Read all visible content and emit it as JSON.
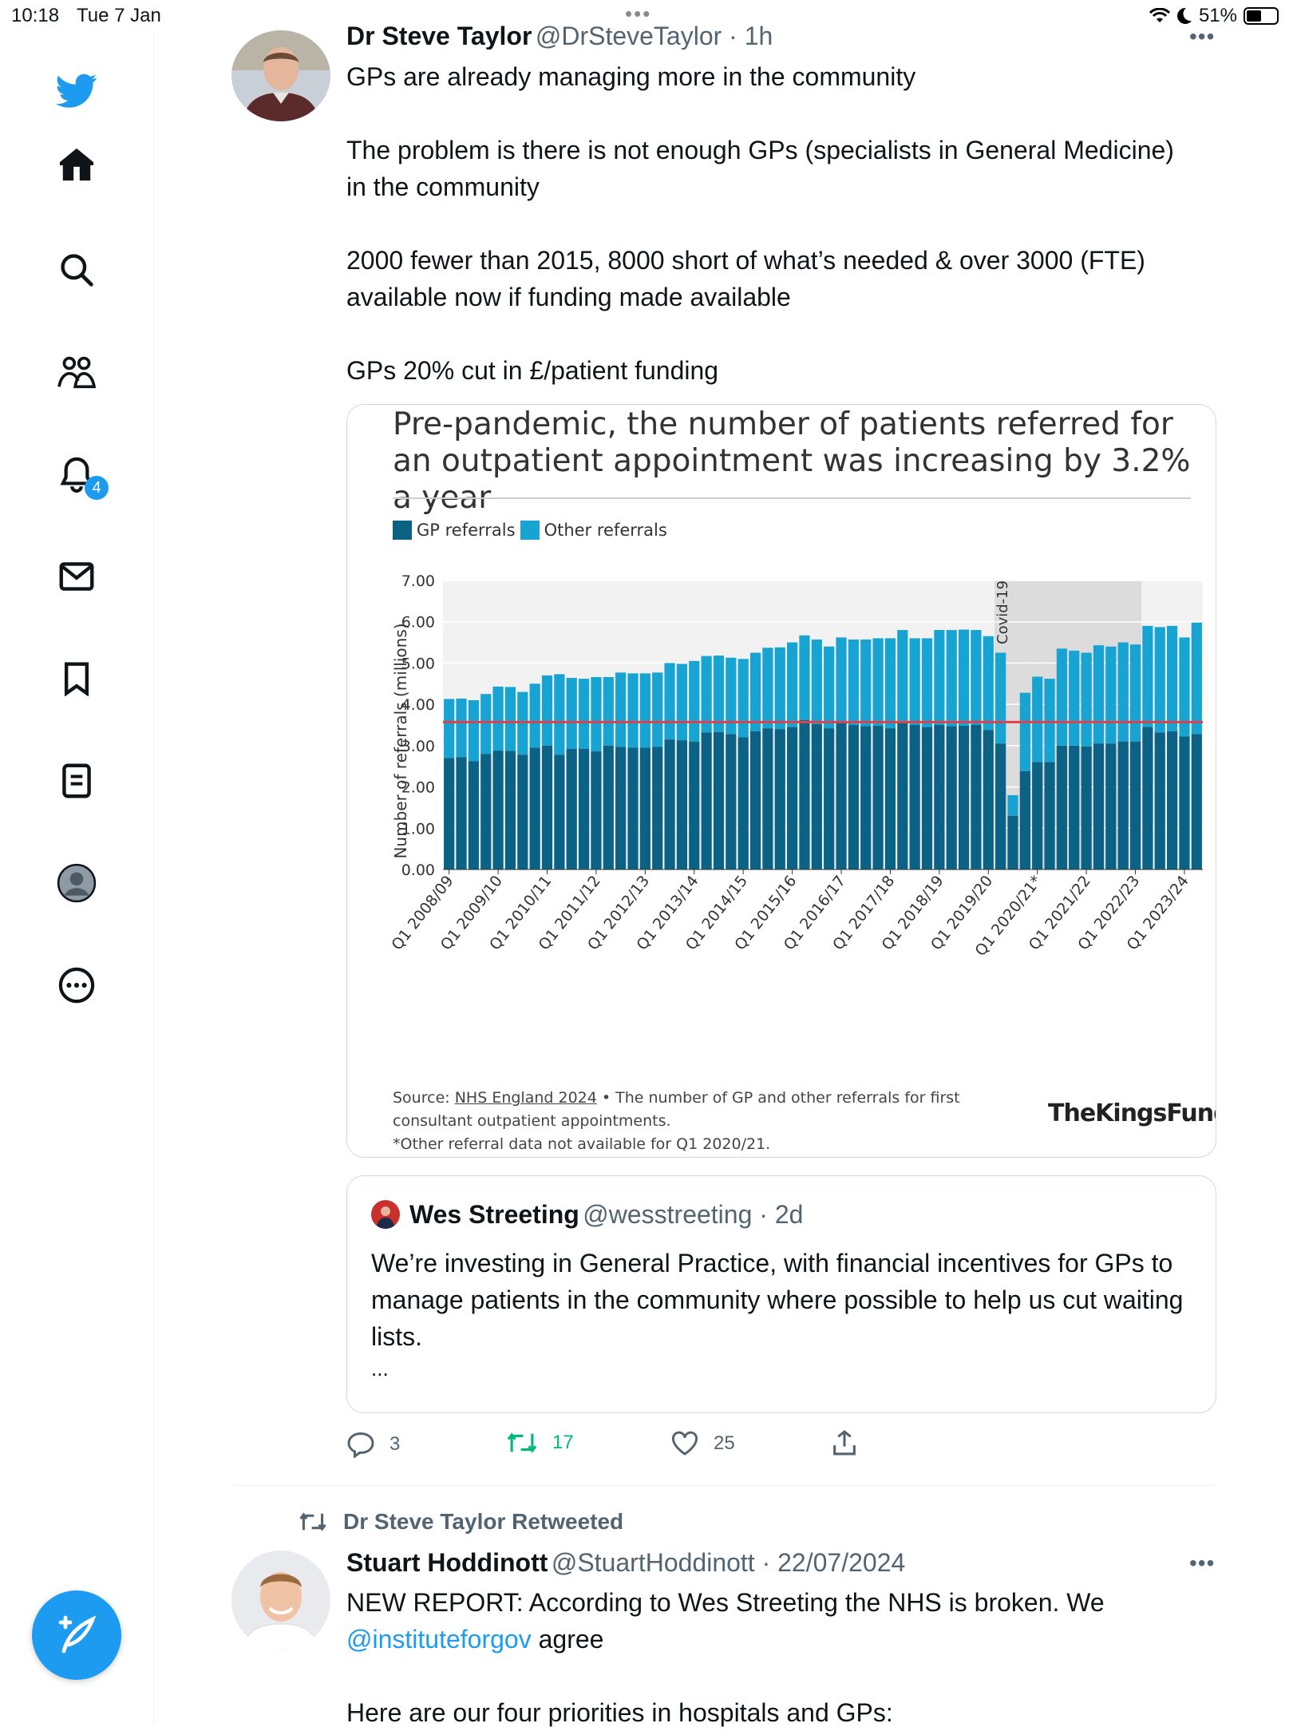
{
  "status_bar": {
    "time": "10:18",
    "date": "Tue 7 Jan",
    "battery": "51%",
    "battery_level": 0.51
  },
  "sidebar": {
    "items": [
      {
        "icon": "twitter-logo-icon"
      },
      {
        "icon": "home-icon"
      },
      {
        "icon": "search-icon"
      },
      {
        "icon": "communities-icon"
      },
      {
        "icon": "notifications-bell-icon",
        "badge": "4"
      },
      {
        "icon": "messages-icon"
      },
      {
        "icon": "bookmarks-icon"
      },
      {
        "icon": "lists-icon"
      },
      {
        "icon": "profile-icon"
      },
      {
        "icon": "more-icon"
      }
    ],
    "accent_color": "#1d9bf0"
  },
  "tweet1": {
    "name": "Dr Steve Taylor",
    "handle_time": "@DrSteveTaylor · 1h",
    "paragraphs": [
      "GPs are already managing more in the community",
      "The problem is there is not enough GPs (specialists in General Medicine) in the community",
      "2000 fewer than 2015, 8000 short of what’s needed & over 3000 (FTE) available now if funding made available",
      "GPs 20% cut in £/patient funding"
    ],
    "replies": "3",
    "retweets": "17",
    "likes": "25"
  },
  "chart_card": {
    "source_prefix": "Source:",
    "source_link": "NHS England 2024",
    "source_rest": " • The number of GP and other referrals for first consultant outpatient appointments.",
    "footnote": "*Other referral data not available for Q1 2020/21.",
    "logo": "TheKingsFund>"
  },
  "chart_data": {
    "type": "bar",
    "stacked": true,
    "title": "Pre-pandemic, the number of patients referred for an outpatient appointment was increasing by 3.2% a year",
    "ylabel": "Number of referrals (millions)",
    "ylim": [
      0,
      7
    ],
    "yticks": [
      "7.00",
      "6.00",
      "5.00",
      "4.00",
      "3.00",
      "2.00",
      "1.00",
      "0.00"
    ],
    "annotation": "Covid-19",
    "reference_line": 3.57,
    "colors": {
      "gp": "#0b6285",
      "other": "#17a4d3",
      "reference": "#e0404a"
    },
    "x_tick_labels": [
      "Q1 2008/09",
      "Q1 2009/10",
      "Q1 2010/11",
      "Q1 2011/12",
      "Q1 2012/13",
      "Q1 2013/14",
      "Q1 2014/15",
      "Q1 2015/16",
      "Q1 2016/17",
      "Q1 2017/18",
      "Q1 2018/19",
      "Q1 2019/20",
      "Q1 2020/21*",
      "Q1 2021/22",
      "Q1 2022/23",
      "Q1 2023/24"
    ],
    "series": [
      {
        "name": "GP referrals",
        "values": [
          2.7,
          2.72,
          2.62,
          2.8,
          2.88,
          2.87,
          2.78,
          2.95,
          3.0,
          2.78,
          2.92,
          2.92,
          2.86,
          3.0,
          2.97,
          2.95,
          2.95,
          2.97,
          3.15,
          3.13,
          3.1,
          3.32,
          3.33,
          3.28,
          3.2,
          3.35,
          3.42,
          3.4,
          3.45,
          3.62,
          3.52,
          3.42,
          3.55,
          3.5,
          3.47,
          3.48,
          3.42,
          3.55,
          3.5,
          3.45,
          3.5,
          3.47,
          3.48,
          3.5,
          3.38,
          3.05,
          1.3,
          2.38,
          2.6,
          2.6,
          3.0,
          3.0,
          2.98,
          3.05,
          3.05,
          3.1,
          3.1,
          3.45,
          3.32,
          3.35,
          3.22,
          3.28
        ]
      },
      {
        "name": "Other referrals",
        "values": [
          1.43,
          1.42,
          1.48,
          1.45,
          1.55,
          1.55,
          1.52,
          1.55,
          1.7,
          1.95,
          1.72,
          1.7,
          1.8,
          1.66,
          1.8,
          1.8,
          1.8,
          1.8,
          1.85,
          1.85,
          1.95,
          1.85,
          1.85,
          1.85,
          1.9,
          1.9,
          1.95,
          1.98,
          2.05,
          2.05,
          2.05,
          1.98,
          2.07,
          2.07,
          2.1,
          2.12,
          2.18,
          2.25,
          2.1,
          2.15,
          2.3,
          2.33,
          2.33,
          2.3,
          2.27,
          2.2,
          0.5,
          1.9,
          2.07,
          2.02,
          2.35,
          2.3,
          2.27,
          2.38,
          2.35,
          2.4,
          2.35,
          2.45,
          2.55,
          2.55,
          2.4,
          2.7
        ]
      }
    ]
  },
  "quote": {
    "name": "Wes Streeting",
    "handle_time": "@wesstreeting · 2d",
    "text": "We’re investing in General Practice, with financial incentives for GPs to manage patients in the community where possible to help us cut waiting lists.",
    "ellipsis": "..."
  },
  "tweet2": {
    "retweet_label": "Dr Steve Taylor Retweeted",
    "name": "Stuart Hoddinott",
    "handle_time": "@StuartHoddinott · 22/07/2024",
    "text_line1": "NEW REPORT: According to Wes Streeting the NHS is broken. We",
    "mention": "@instituteforgov",
    "text_line2_rest": " agree",
    "text_line3": "Here are our four priorities in hospitals and GPs:"
  }
}
